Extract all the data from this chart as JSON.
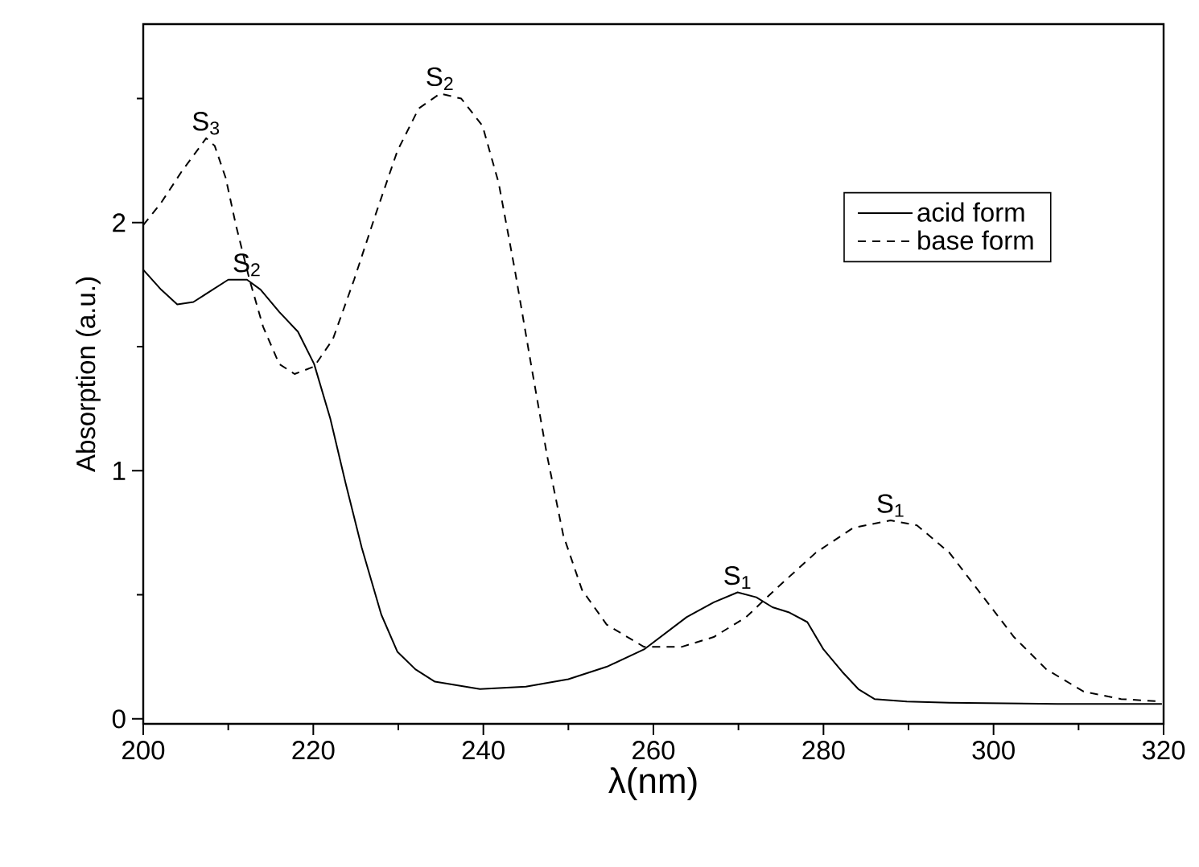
{
  "chart_data": {
    "type": "line",
    "xlabel": "λ(nm)",
    "ylabel": "Absorption (a.u.)",
    "xlim": [
      200,
      320
    ],
    "ylim": [
      -0.02,
      2.8
    ],
    "xticks": [
      200,
      {
        "value": 210,
        "label": null
      },
      220,
      {
        "value": 230,
        "label": null
      },
      240,
      {
        "value": 250,
        "label": null
      },
      260,
      {
        "value": 270,
        "label": null
      },
      280,
      {
        "value": 290,
        "label": null
      },
      300,
      {
        "value": 310,
        "label": null
      },
      320
    ],
    "yticks": [
      0,
      {
        "value": 0.5,
        "label": null
      },
      1,
      {
        "value": 1.5,
        "label": null
      },
      2,
      {
        "value": 2.5,
        "label": null
      }
    ],
    "legend": "top right",
    "grid": false,
    "marker": "none",
    "series": [
      {
        "name": "acid form",
        "color": "#000000",
        "line_style": "solid",
        "x": [
          200,
          202.1,
          204,
          205.9,
          210,
          212.2,
          213.8,
          216,
          218.2,
          220.1,
          222,
          223.8,
          225.7,
          228,
          229.9,
          232,
          234.3,
          239.6,
          245,
          250,
          254.5,
          258.9,
          263.9,
          267.1,
          269.9,
          272.1,
          274,
          275.9,
          278.1,
          280,
          282.2,
          284.1,
          286,
          289.8,
          294.8,
          307.5,
          319.8
        ],
        "values": [
          1.81,
          1.73,
          1.67,
          1.68,
          1.77,
          1.77,
          1.73,
          1.64,
          1.56,
          1.43,
          1.21,
          0.95,
          0.69,
          0.42,
          0.27,
          0.2,
          0.15,
          0.12,
          0.13,
          0.16,
          0.21,
          0.28,
          0.41,
          0.47,
          0.51,
          0.49,
          0.45,
          0.43,
          0.39,
          0.28,
          0.19,
          0.12,
          0.08,
          0.07,
          0.065,
          0.06,
          0.06
        ]
      },
      {
        "name": "base form",
        "color": "#000000",
        "line_style": "dashed",
        "x": [
          200,
          202.1,
          204.6,
          207.4,
          208.4,
          209.7,
          210.9,
          212.5,
          214.1,
          216,
          217.8,
          220.1,
          222.3,
          224.8,
          227.3,
          229.9,
          232.4,
          234.9,
          237.4,
          239.9,
          241.8,
          243.7,
          245.6,
          247.5,
          249.4,
          251.6,
          254.5,
          258.9,
          263.3,
          267.1,
          270.9,
          274.6,
          279.1,
          283.5,
          287.9,
          291,
          294.8,
          298.6,
          302.4,
          306.2,
          310.6,
          315,
          319.8
        ],
        "values": [
          1.99,
          2.08,
          2.21,
          2.34,
          2.31,
          2.18,
          1.99,
          1.77,
          1.58,
          1.43,
          1.39,
          1.42,
          1.53,
          1.77,
          2.03,
          2.29,
          2.46,
          2.52,
          2.5,
          2.39,
          2.16,
          1.81,
          1.43,
          1.06,
          0.74,
          0.52,
          0.38,
          0.29,
          0.29,
          0.33,
          0.41,
          0.53,
          0.67,
          0.77,
          0.8,
          0.78,
          0.67,
          0.5,
          0.33,
          0.2,
          0.11,
          0.08,
          0.07
        ]
      }
    ],
    "annotations": [
      {
        "text": "S$_{3}$",
        "x": 207.4,
        "y": 2.34
      },
      {
        "text": "S$_{2}$",
        "x": 212.2,
        "y": 1.77
      },
      {
        "text": "S$_{2}$",
        "x": 234.9,
        "y": 2.52
      },
      {
        "text": "S$_{1}$",
        "x": 269.9,
        "y": 0.51
      },
      {
        "text": "S$_{1}$",
        "x": 287.9,
        "y": 0.8
      }
    ]
  }
}
